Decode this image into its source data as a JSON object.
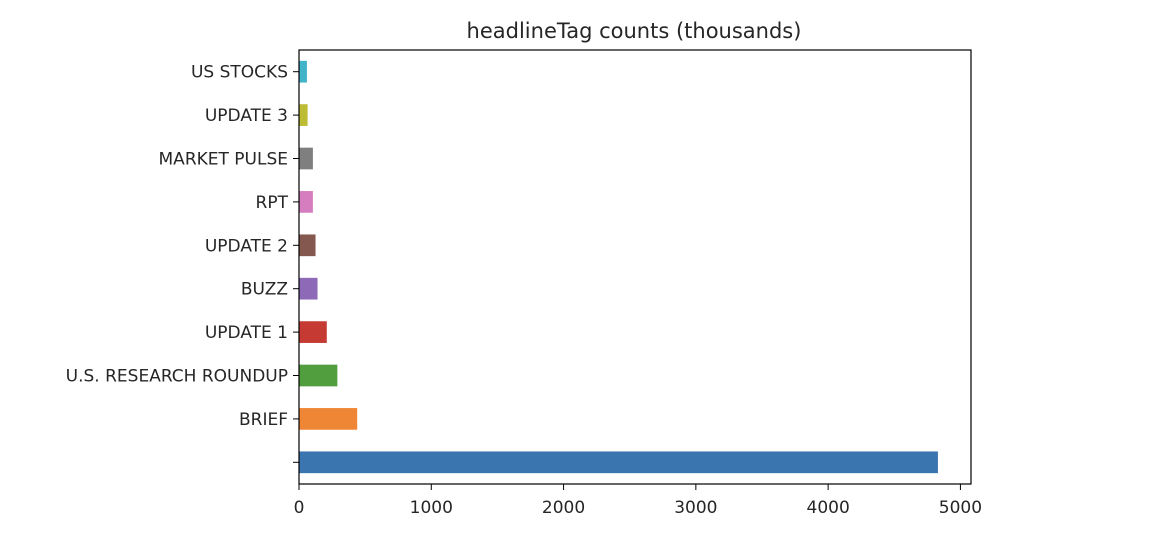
{
  "chart_data": {
    "type": "bar",
    "orientation": "horizontal",
    "title": "headlineTag counts (thousands)",
    "xlabel": "",
    "ylabel": "",
    "categories": [
      "",
      "BRIEF",
      "U.S. RESEARCH ROUNDUP",
      "UPDATE 1",
      "BUZZ",
      "UPDATE 2",
      "RPT",
      "MARKET PULSE",
      "UPDATE 3",
      "US STOCKS"
    ],
    "values": [
      4830,
      440,
      290,
      210,
      140,
      125,
      105,
      105,
      65,
      60
    ],
    "colors": [
      "#3a75b0",
      "#ef8636",
      "#519e3e",
      "#c53a32",
      "#8d69b8",
      "#84584e",
      "#d57dbf",
      "#7f7f7f",
      "#bcbc35",
      "#42b4c9"
    ],
    "xlim": [
      0,
      5080
    ],
    "xticks": [
      0,
      1000,
      2000,
      3000,
      4000,
      5000
    ],
    "xtick_labels": [
      "0",
      "1000",
      "2000",
      "3000",
      "4000",
      "5000"
    ],
    "grid": false,
    "legend": "none"
  }
}
